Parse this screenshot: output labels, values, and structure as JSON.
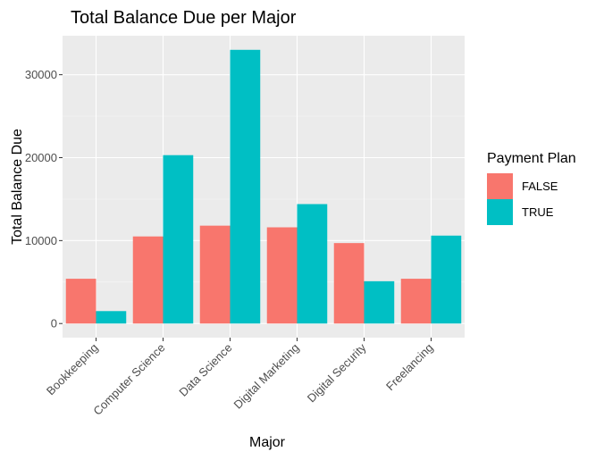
{
  "chart_data": {
    "type": "bar",
    "title": "Total Balance Due per Major",
    "xlabel": "Major",
    "ylabel": "Total Balance Due",
    "categories": [
      "Bookkeeping",
      "Computer Science",
      "Data Science",
      "Digital Marketing",
      "Digital Security",
      "Freelancing"
    ],
    "series": [
      {
        "name": "FALSE",
        "color": "#F8766D",
        "values": [
          5400,
          10500,
          11800,
          11600,
          9700,
          5400
        ]
      },
      {
        "name": "TRUE",
        "color": "#00BFC4",
        "values": [
          1500,
          20300,
          33000,
          14400,
          5100,
          10600
        ]
      }
    ],
    "ylim": [
      -1700,
      34700
    ],
    "yticks": [
      0,
      10000,
      20000,
      30000
    ],
    "ytick_labels": [
      "0",
      "10000",
      "20000",
      "30000"
    ],
    "legend": {
      "title": "Payment Plan",
      "position": "right"
    },
    "grid": true,
    "colors": {
      "panel": "#EBEBEB",
      "grid_major": "#FFFFFF",
      "grid_minor": "#F5F5F5",
      "text": "#000000",
      "tick_text": "#4D4D4D",
      "tick_mark": "#333333"
    }
  }
}
